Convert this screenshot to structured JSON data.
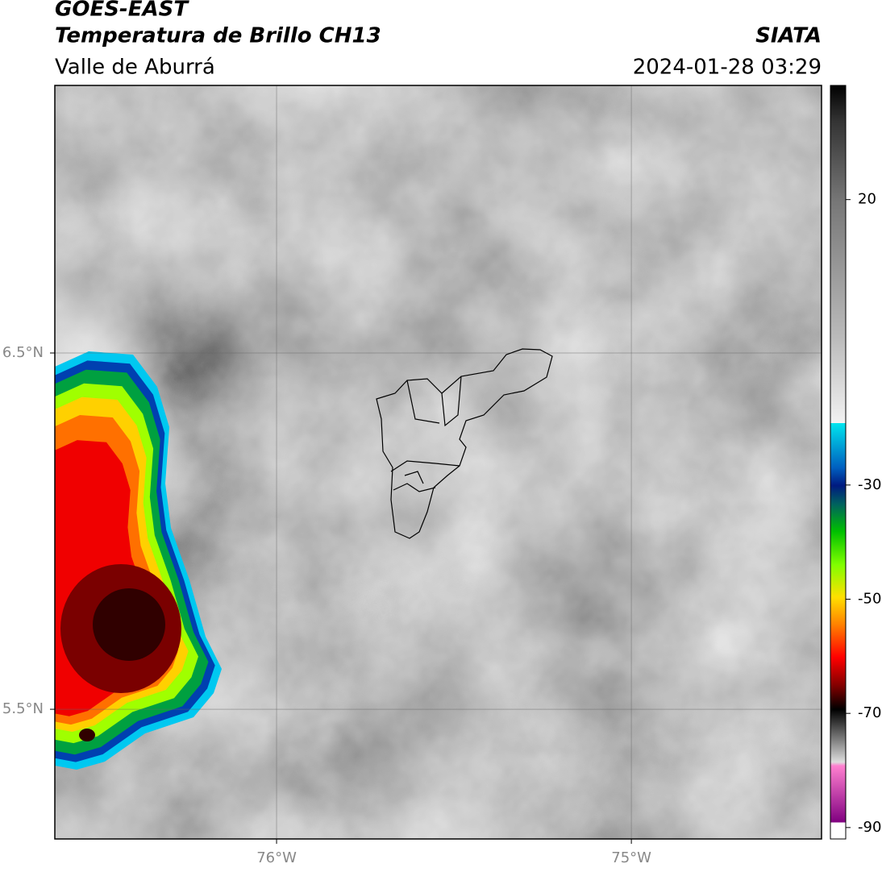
{
  "header": {
    "title": "GOES-EAST",
    "subtitle": "Temperatura de Brillo CH13",
    "region": "Valle de Aburrá",
    "source": "SIATA",
    "datetime": "2024-01-28 03:29"
  },
  "map": {
    "xlim": [
      -76.625,
      -74.464
    ],
    "ylim": [
      5.136,
      7.251
    ],
    "xticks": [
      {
        "value": -76,
        "label": "76°W"
      },
      {
        "value": -75,
        "label": "75°W"
      }
    ],
    "yticks": [
      {
        "value": 5.5,
        "label": "5.5°N"
      },
      {
        "value": 6.5,
        "label": "6.5°N"
      }
    ],
    "grid": true
  },
  "colorbar": {
    "lim": [
      -92,
      40
    ],
    "ticks": [
      -90,
      -70,
      -50,
      -30,
      20
    ]
  }
}
